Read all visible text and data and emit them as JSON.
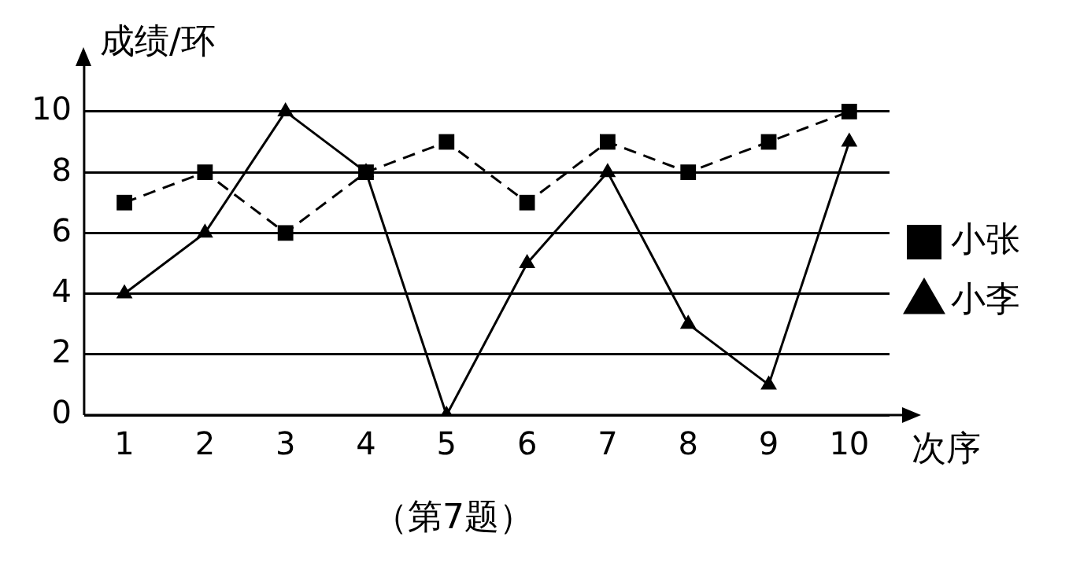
{
  "chart_data": {
    "type": "line",
    "ylabel": "成绩/环",
    "xlabel": "次序",
    "annotations": [
      "（第7题）"
    ],
    "categories": [
      "1",
      "2",
      "3",
      "4",
      "5",
      "6",
      "7",
      "8",
      "9",
      "10"
    ],
    "series": [
      {
        "name": "小张",
        "color": "#000000",
        "values": [
          7,
          8,
          6,
          8,
          9,
          7,
          9,
          8,
          9,
          10
        ],
        "marker": "square",
        "line_style": "dashed"
      },
      {
        "name": "小李",
        "color": "#000000",
        "values": [
          4,
          6,
          10,
          8,
          0,
          5,
          8,
          3,
          1,
          9
        ],
        "marker": "triangle",
        "line_style": "solid"
      }
    ],
    "ylim": [
      0,
      11.5
    ],
    "yticks": [
      0,
      2,
      4,
      6,
      8,
      10
    ],
    "grid": "y",
    "legend": "right"
  }
}
